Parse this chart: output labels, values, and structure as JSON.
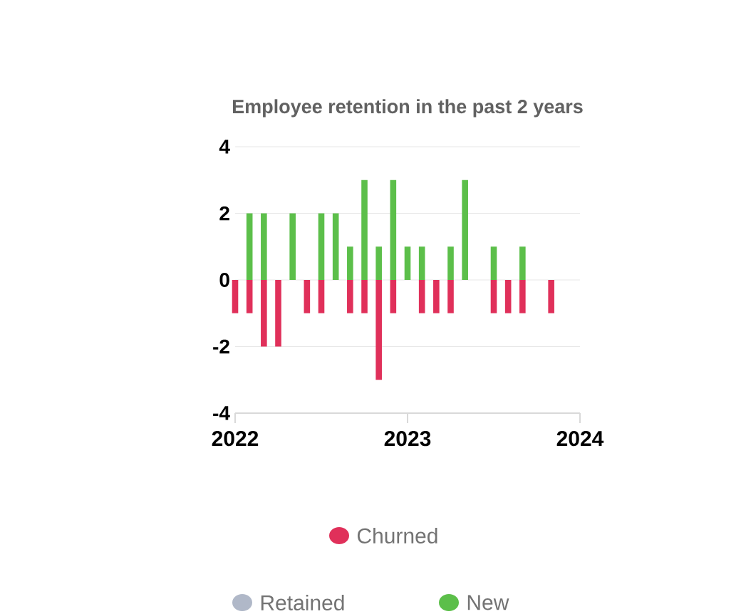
{
  "chart_data": {
    "type": "bar",
    "title": "Employee retention in the past 2 years",
    "x": [
      "2022-01",
      "2022-02",
      "2022-03",
      "2022-04",
      "2022-05",
      "2022-06",
      "2022-07",
      "2022-08",
      "2022-09",
      "2022-10",
      "2022-11",
      "2022-12",
      "2023-01",
      "2023-02",
      "2023-03",
      "2023-04",
      "2023-05",
      "2023-06",
      "2023-07",
      "2023-08",
      "2023-09",
      "2023-10",
      "2023-11"
    ],
    "series": [
      {
        "name": "Churned",
        "color": "#e0305a",
        "values": [
          -1,
          -1,
          -2,
          -2,
          null,
          -1,
          -1,
          null,
          -1,
          -1,
          -3,
          -1,
          null,
          -1,
          -1,
          -1,
          null,
          null,
          -1,
          -1,
          -1,
          null,
          -1
        ]
      },
      {
        "name": "Retained",
        "color": "#b0b8c8",
        "values": [
          null,
          null,
          null,
          null,
          null,
          null,
          null,
          null,
          null,
          null,
          null,
          null,
          null,
          null,
          null,
          null,
          null,
          null,
          null,
          null,
          null,
          null,
          null
        ]
      },
      {
        "name": "New",
        "color": "#5cbf4a",
        "values": [
          null,
          2,
          2,
          null,
          2,
          null,
          2,
          2,
          1,
          3,
          1,
          3,
          1,
          1,
          null,
          1,
          3,
          null,
          1,
          null,
          1,
          null,
          null
        ]
      }
    ],
    "xlim": [
      "2022",
      "2024"
    ],
    "xticks": [
      "2022",
      "2023",
      "2024"
    ],
    "ylim": [
      -4,
      4
    ],
    "yticks": [
      -4,
      -2,
      0,
      2,
      4
    ],
    "grid": "y",
    "legend": "bottom"
  }
}
